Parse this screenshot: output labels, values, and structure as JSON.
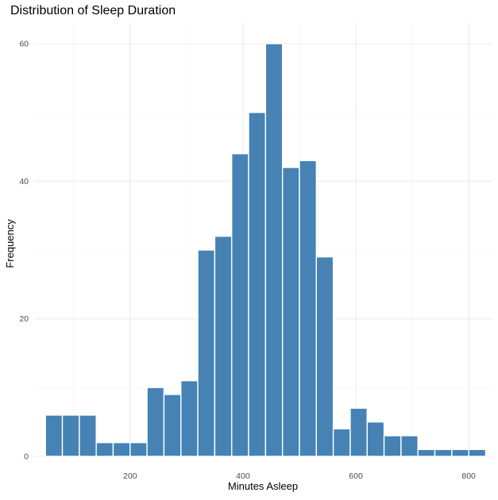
{
  "chart_data": {
    "type": "bar",
    "subtype": "histogram",
    "title": "Distribution of Sleep Duration",
    "xlabel": "Minutes Asleep",
    "ylabel": "Frequency",
    "bin_width": 30,
    "bin_starts": [
      50,
      80,
      110,
      140,
      170,
      200,
      230,
      260,
      290,
      320,
      350,
      380,
      410,
      440,
      470,
      500,
      530,
      560,
      590,
      620,
      650,
      680,
      710,
      740,
      770,
      800
    ],
    "values": [
      6,
      6,
      6,
      2,
      2,
      2,
      10,
      9,
      11,
      30,
      32,
      44,
      50,
      60,
      42,
      43,
      29,
      4,
      7,
      5,
      3,
      3,
      1,
      1,
      1,
      1
    ],
    "xlim": [
      30,
      842
    ],
    "ylim": [
      0,
      63
    ],
    "x_ticks": [
      200,
      400,
      600,
      800
    ],
    "y_ticks": [
      0,
      20,
      40,
      60
    ],
    "x_minor_ticks": [
      100,
      300,
      500,
      700
    ],
    "y_minor_ticks": [
      10,
      30,
      50
    ],
    "grid": true,
    "legend": "none",
    "bar_color": "#4682b4",
    "bar_edge_color": "#ffffff"
  }
}
